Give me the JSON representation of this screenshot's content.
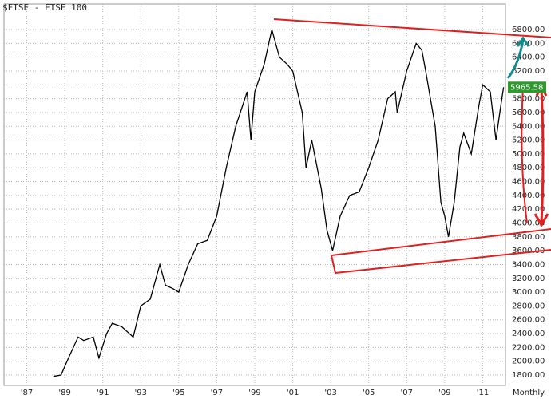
{
  "chart_data": {
    "type": "line",
    "title": "$FTSE - FTSE 100",
    "x_axis_note": "Monthly",
    "color": "#000000",
    "grid": true,
    "x": [
      1988.4,
      1988.8,
      1989.2,
      1989.7,
      1990.0,
      1990.5,
      1990.8,
      1991.2,
      1991.5,
      1992.0,
      1992.6,
      1993.0,
      1993.5,
      1994.0,
      1994.3,
      1994.7,
      1995.0,
      1995.5,
      1996.0,
      1996.5,
      1997.0,
      1997.5,
      1998.0,
      1998.6,
      1998.8,
      1999.0,
      1999.5,
      1999.9,
      2000.3,
      2000.7,
      2001.0,
      2001.5,
      2001.7,
      2002.0,
      2002.5,
      2002.8,
      2003.1,
      2003.5,
      2004.0,
      2004.5,
      2005.0,
      2005.5,
      2006.0,
      2006.4,
      2006.5,
      2007.0,
      2007.5,
      2007.8,
      2008.0,
      2008.5,
      2008.8,
      2009.0,
      2009.2,
      2009.5,
      2009.8,
      2010.0,
      2010.4,
      2010.8,
      2011.0,
      2011.4,
      2011.7,
      2011.9,
      2012.1
    ],
    "values": [
      1780,
      1800,
      2050,
      2350,
      2300,
      2350,
      2050,
      2400,
      2550,
      2500,
      2350,
      2800,
      2900,
      3400,
      3100,
      3050,
      3000,
      3400,
      3700,
      3750,
      4100,
      4800,
      5400,
      5900,
      5200,
      5900,
      6300,
      6800,
      6400,
      6300,
      6200,
      5600,
      4800,
      5200,
      4500,
      3900,
      3600,
      4100,
      4400,
      4450,
      4800,
      5200,
      5800,
      5900,
      5600,
      6200,
      6600,
      6500,
      6200,
      5400,
      4300,
      4100,
      3800,
      4300,
      5100,
      5300,
      5000,
      5700,
      6000,
      5900,
      5200,
      5600,
      5965.58
    ],
    "xlim": [
      1985.8,
      2012.2
    ],
    "xticks": [
      {
        "value": 1987,
        "label": "'87"
      },
      {
        "value": 1989,
        "label": "'89"
      },
      {
        "value": 1991,
        "label": "'91"
      },
      {
        "value": 1993,
        "label": "'93"
      },
      {
        "value": 1995,
        "label": "'95"
      },
      {
        "value": 1997,
        "label": "'97"
      },
      {
        "value": 1999,
        "label": "'99"
      },
      {
        "value": 2001,
        "label": "'01"
      },
      {
        "value": 2003,
        "label": "'03"
      },
      {
        "value": 2005,
        "label": "'05"
      },
      {
        "value": 2007,
        "label": "'07"
      },
      {
        "value": 2009,
        "label": "'09"
      },
      {
        "value": 2011,
        "label": "'11"
      }
    ],
    "ylim": [
      1650,
      7170
    ],
    "yticks": [
      {
        "value": 1800,
        "label": "1800.00"
      },
      {
        "value": 2000,
        "label": "2000.00"
      },
      {
        "value": 2200,
        "label": "2200.00"
      },
      {
        "value": 2400,
        "label": "2400.00"
      },
      {
        "value": 2600,
        "label": "2600.00"
      },
      {
        "value": 2800,
        "label": "2800.00"
      },
      {
        "value": 3000,
        "label": "3000.00"
      },
      {
        "value": 3200,
        "label": "3200.00"
      },
      {
        "value": 3400,
        "label": "3400.00"
      },
      {
        "value": 3600,
        "label": "3600.00"
      },
      {
        "value": 3800,
        "label": "3800.00"
      },
      {
        "value": 4000,
        "label": "4000.00"
      },
      {
        "value": 4200,
        "label": "4200.00"
      },
      {
        "value": 4400,
        "label": "4400.00"
      },
      {
        "value": 4600,
        "label": "4600.00"
      },
      {
        "value": 4800,
        "label": "4800.00"
      },
      {
        "value": 5000,
        "label": "5000.00"
      },
      {
        "value": 5200,
        "label": "5200.00"
      },
      {
        "value": 5400,
        "label": "5400.00"
      },
      {
        "value": 5600,
        "label": "5600.00"
      },
      {
        "value": 5800,
        "label": "5800.00"
      },
      {
        "value": 6000,
        "label": "6000.00"
      },
      {
        "value": 6200,
        "label": "6200.00"
      },
      {
        "value": 6400,
        "label": "6400.00"
      },
      {
        "value": 6600,
        "label": "6600.00"
      },
      {
        "value": 6800,
        "label": "6800.00"
      }
    ]
  }
}
